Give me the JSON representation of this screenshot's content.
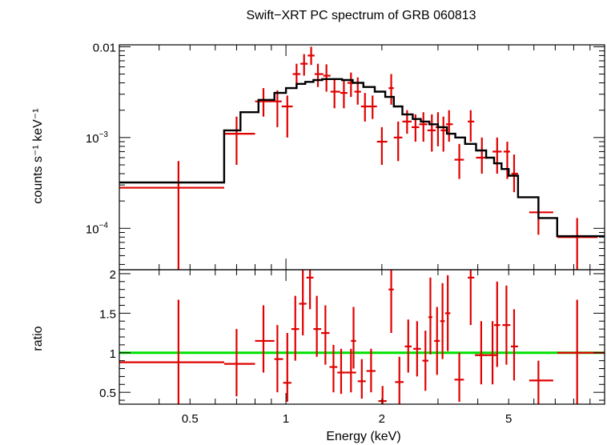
{
  "chart_data": {
    "type": "scatter",
    "title": "Swift−XRT PC spectrum of GRB 060813",
    "xlabel": "Energy (keV)",
    "xscale": "log",
    "xlim": [
      0.3,
      10
    ],
    "x_ticks": [
      {
        "value": 0.5,
        "label": "0.5"
      },
      {
        "value": 1,
        "label": "1"
      },
      {
        "value": 2,
        "label": "2"
      },
      {
        "value": 5,
        "label": "5"
      }
    ],
    "panels": [
      {
        "name": "spectrum",
        "ylabel": "counts s⁻¹ keV⁻¹",
        "yscale": "log",
        "ylim": [
          3.5e-05,
          0.0105
        ],
        "y_ticks": [
          {
            "value": 0.01,
            "label": "0.01",
            "base": "",
            "exp": ""
          },
          {
            "value": 0.001,
            "label": "",
            "base": "10",
            "exp": "−3"
          },
          {
            "value": 0.0001,
            "label": "",
            "base": "10",
            "exp": "−4"
          }
        ],
        "model_step": {
          "name": "model",
          "color": "#000000",
          "edges": [
            0.3,
            0.64,
            0.72,
            0.82,
            0.92,
            1.0,
            1.08,
            1.15,
            1.22,
            1.3,
            1.38,
            1.5,
            1.62,
            1.75,
            1.9,
            2.05,
            2.18,
            2.32,
            2.5,
            2.65,
            2.82,
            3.0,
            3.2,
            3.4,
            3.65,
            3.95,
            4.25,
            4.5,
            4.75,
            5.0,
            5.35,
            6.2,
            7.1,
            10.0
          ],
          "values": [
            0.00032,
            0.0012,
            0.0019,
            0.0026,
            0.0031,
            0.0035,
            0.0039,
            0.0041,
            0.0043,
            0.0044,
            0.0044,
            0.0043,
            0.004,
            0.0036,
            0.0032,
            0.0028,
            0.0022,
            0.0018,
            0.0016,
            0.0015,
            0.0014,
            0.0013,
            0.0011,
            0.001,
            0.00085,
            0.00072,
            0.0006,
            0.00052,
            0.00045,
            0.00038,
            0.00022,
            0.00013,
            8.2e-05
          ]
        },
        "series": [
          {
            "name": "data",
            "color": "#e00000",
            "points": [
              {
                "x": 0.46,
                "xlo": 0.3,
                "xhi": 0.64,
                "y": 0.00028,
                "ylo": 3.5e-05,
                "yhi": 0.00055
              },
              {
                "x": 0.7,
                "xlo": 0.64,
                "xhi": 0.8,
                "y": 0.0011,
                "ylo": 0.0005,
                "yhi": 0.0017
              },
              {
                "x": 0.85,
                "xlo": 0.8,
                "xhi": 0.92,
                "y": 0.0025,
                "ylo": 0.0017,
                "yhi": 0.0035
              },
              {
                "x": 0.94,
                "xlo": 0.92,
                "xhi": 0.97,
                "y": 0.0025,
                "ylo": 0.0013,
                "yhi": 0.0033
              },
              {
                "x": 1.01,
                "xlo": 0.97,
                "xhi": 1.05,
                "y": 0.0022,
                "ylo": 0.001,
                "yhi": 0.0029
              },
              {
                "x": 1.08,
                "xlo": 1.05,
                "xhi": 1.11,
                "y": 0.005,
                "ylo": 0.0036,
                "yhi": 0.0065
              },
              {
                "x": 1.14,
                "xlo": 1.11,
                "xhi": 1.17,
                "y": 0.0065,
                "ylo": 0.0048,
                "yhi": 0.0083
              },
              {
                "x": 1.2,
                "xlo": 1.17,
                "xhi": 1.23,
                "y": 0.008,
                "ylo": 0.0063,
                "yhi": 0.01
              },
              {
                "x": 1.26,
                "xlo": 1.23,
                "xhi": 1.31,
                "y": 0.005,
                "ylo": 0.0036,
                "yhi": 0.0065
              },
              {
                "x": 1.34,
                "xlo": 1.31,
                "xhi": 1.38,
                "y": 0.0048,
                "ylo": 0.0032,
                "yhi": 0.0064
              },
              {
                "x": 1.42,
                "xlo": 1.38,
                "xhi": 1.48,
                "y": 0.0032,
                "ylo": 0.0021,
                "yhi": 0.0043
              },
              {
                "x": 1.52,
                "xlo": 1.48,
                "xhi": 1.56,
                "y": 0.0031,
                "ylo": 0.0021,
                "yhi": 0.0043
              },
              {
                "x": 1.6,
                "xlo": 1.56,
                "xhi": 1.64,
                "y": 0.004,
                "ylo": 0.0028,
                "yhi": 0.0052
              },
              {
                "x": 1.68,
                "xlo": 1.64,
                "xhi": 1.72,
                "y": 0.0032,
                "ylo": 0.0023,
                "yhi": 0.0046
              },
              {
                "x": 1.77,
                "xlo": 1.72,
                "xhi": 1.82,
                "y": 0.0022,
                "ylo": 0.0015,
                "yhi": 0.0031
              },
              {
                "x": 1.87,
                "xlo": 1.82,
                "xhi": 1.93,
                "y": 0.0022,
                "ylo": 0.0016,
                "yhi": 0.0029
              },
              {
                "x": 2.0,
                "xlo": 1.93,
                "xhi": 2.08,
                "y": 0.0009,
                "ylo": 0.0005,
                "yhi": 0.0013
              },
              {
                "x": 2.14,
                "xlo": 2.1,
                "xhi": 2.18,
                "y": 0.0035,
                "ylo": 0.0023,
                "yhi": 0.005
              },
              {
                "x": 2.25,
                "xlo": 2.18,
                "xhi": 2.32,
                "y": 0.001,
                "ylo": 0.00055,
                "yhi": 0.0015
              },
              {
                "x": 2.4,
                "xlo": 2.32,
                "xhi": 2.48,
                "y": 0.0015,
                "ylo": 0.0011,
                "yhi": 0.002
              },
              {
                "x": 2.55,
                "xlo": 2.48,
                "xhi": 2.62,
                "y": 0.0013,
                "ylo": 0.0009,
                "yhi": 0.0018
              },
              {
                "x": 2.7,
                "xlo": 2.62,
                "xhi": 2.78,
                "y": 0.0014,
                "ylo": 0.0009,
                "yhi": 0.0019
              },
              {
                "x": 2.87,
                "xlo": 2.78,
                "xhi": 2.95,
                "y": 0.0012,
                "ylo": 0.0007,
                "yhi": 0.0018
              },
              {
                "x": 3.0,
                "xlo": 2.95,
                "xhi": 3.06,
                "y": 0.0013,
                "ylo": 0.0008,
                "yhi": 0.0019
              },
              {
                "x": 3.12,
                "xlo": 3.06,
                "xhi": 3.18,
                "y": 0.0012,
                "ylo": 0.0007,
                "yhi": 0.0017
              },
              {
                "x": 3.25,
                "xlo": 3.18,
                "xhi": 3.34,
                "y": 0.0014,
                "ylo": 0.0009,
                "yhi": 0.002
              },
              {
                "x": 3.5,
                "xlo": 3.38,
                "xhi": 3.62,
                "y": 0.00057,
                "ylo": 0.00035,
                "yhi": 0.00085
              },
              {
                "x": 3.8,
                "xlo": 3.72,
                "xhi": 3.9,
                "y": 0.0015,
                "ylo": 0.0009,
                "yhi": 0.002
              },
              {
                "x": 4.12,
                "xlo": 3.95,
                "xhi": 4.3,
                "y": 0.0006,
                "ylo": 0.0004,
                "yhi": 0.001
              },
              {
                "x": 4.6,
                "xlo": 4.45,
                "xhi": 4.75,
                "y": 0.0007,
                "ylo": 0.0004,
                "yhi": 0.001
              },
              {
                "x": 4.95,
                "xlo": 4.82,
                "xhi": 5.05,
                "y": 0.0007,
                "ylo": 0.00035,
                "yhi": 0.0009
              },
              {
                "x": 5.2,
                "xlo": 5.1,
                "xhi": 5.35,
                "y": 0.0004,
                "ylo": 0.00025,
                "yhi": 0.00065
              },
              {
                "x": 6.2,
                "xlo": 5.8,
                "xhi": 6.9,
                "y": 0.00015,
                "ylo": 8.5e-05,
                "yhi": 0.00022
              },
              {
                "x": 8.2,
                "xlo": 7.1,
                "xhi": 9.5,
                "y": 8e-05,
                "ylo": 3.5e-05,
                "yhi": 0.00013
              }
            ]
          }
        ]
      },
      {
        "name": "ratio",
        "ylabel": "ratio",
        "yscale": "linear",
        "ylim": [
          0.35,
          2.05
        ],
        "y_ticks": [
          {
            "value": 2,
            "label": "2"
          },
          {
            "value": 1.5,
            "label": "1.5"
          },
          {
            "value": 1,
            "label": "1"
          },
          {
            "value": 0.5,
            "label": "0.5"
          }
        ],
        "reference_line": {
          "name": "unity",
          "value": 1,
          "color": "#00e000"
        },
        "series": [
          {
            "name": "data/model",
            "color": "#e00000",
            "points": [
              {
                "x": 0.46,
                "xlo": 0.3,
                "xhi": 0.64,
                "y": 0.88,
                "ylo": 0.35,
                "yhi": 1.67
              },
              {
                "x": 0.7,
                "xlo": 0.64,
                "xhi": 0.8,
                "y": 0.86,
                "ylo": 0.45,
                "yhi": 1.3
              },
              {
                "x": 0.85,
                "xlo": 0.8,
                "xhi": 0.92,
                "y": 1.15,
                "ylo": 0.75,
                "yhi": 1.6
              },
              {
                "x": 0.94,
                "xlo": 0.92,
                "xhi": 0.98,
                "y": 0.92,
                "ylo": 0.5,
                "yhi": 1.35
              },
              {
                "x": 1.01,
                "xlo": 0.98,
                "xhi": 1.04,
                "y": 0.62,
                "ylo": 0.38,
                "yhi": 1.25
              },
              {
                "x": 1.07,
                "xlo": 1.04,
                "xhi": 1.1,
                "y": 1.3,
                "ylo": 0.9,
                "yhi": 1.72
              },
              {
                "x": 1.13,
                "xlo": 1.1,
                "xhi": 1.16,
                "y": 1.62,
                "ylo": 1.22,
                "yhi": 2.05
              },
              {
                "x": 1.19,
                "xlo": 1.16,
                "xhi": 1.22,
                "y": 1.95,
                "ylo": 1.55,
                "yhi": 2.05
              },
              {
                "x": 1.25,
                "xlo": 1.22,
                "xhi": 1.29,
                "y": 1.3,
                "ylo": 0.95,
                "yhi": 1.72
              },
              {
                "x": 1.33,
                "xlo": 1.29,
                "xhi": 1.37,
                "y": 1.25,
                "ylo": 0.85,
                "yhi": 1.6
              },
              {
                "x": 1.41,
                "xlo": 1.37,
                "xhi": 1.45,
                "y": 0.82,
                "ylo": 0.5,
                "yhi": 1.1
              },
              {
                "x": 1.49,
                "xlo": 1.45,
                "xhi": 1.54,
                "y": 0.75,
                "ylo": 0.48,
                "yhi": 1.05
              },
              {
                "x": 1.6,
                "xlo": 1.54,
                "xhi": 1.66,
                "y": 0.75,
                "ylo": 0.5,
                "yhi": 1.05
              },
              {
                "x": 1.63,
                "xlo": 1.6,
                "xhi": 1.66,
                "y": 1.15,
                "ylo": 0.8,
                "yhi": 1.58
              },
              {
                "x": 1.73,
                "xlo": 1.68,
                "xhi": 1.78,
                "y": 0.64,
                "ylo": 0.42,
                "yhi": 0.92
              },
              {
                "x": 1.85,
                "xlo": 1.79,
                "xhi": 1.91,
                "y": 0.77,
                "ylo": 0.5,
                "yhi": 1.05
              },
              {
                "x": 2.01,
                "xlo": 1.95,
                "xhi": 2.07,
                "y": 0.39,
                "ylo": 0.35,
                "yhi": 0.58
              },
              {
                "x": 2.14,
                "xlo": 2.1,
                "xhi": 2.18,
                "y": 1.8,
                "ylo": 1.25,
                "yhi": 2.05
              },
              {
                "x": 2.27,
                "xlo": 2.2,
                "xhi": 2.34,
                "y": 0.63,
                "ylo": 0.35,
                "yhi": 0.95
              },
              {
                "x": 2.42,
                "xlo": 2.36,
                "xhi": 2.48,
                "y": 1.08,
                "ylo": 0.75,
                "yhi": 1.42
              },
              {
                "x": 2.58,
                "xlo": 2.51,
                "xhi": 2.65,
                "y": 1.05,
                "ylo": 0.7,
                "yhi": 1.4
              },
              {
                "x": 2.74,
                "xlo": 2.68,
                "xhi": 2.8,
                "y": 0.9,
                "ylo": 0.52,
                "yhi": 1.28
              },
              {
                "x": 2.84,
                "xlo": 2.8,
                "xhi": 2.88,
                "y": 1.45,
                "ylo": 0.98,
                "yhi": 1.95
              },
              {
                "x": 2.98,
                "xlo": 2.92,
                "xhi": 3.04,
                "y": 1.15,
                "ylo": 0.72,
                "yhi": 1.58
              },
              {
                "x": 3.1,
                "xlo": 3.05,
                "xhi": 3.15,
                "y": 1.4,
                "ylo": 0.92,
                "yhi": 1.88
              },
              {
                "x": 3.22,
                "xlo": 3.16,
                "xhi": 3.28,
                "y": 1.5,
                "ylo": 1.02,
                "yhi": 1.98
              },
              {
                "x": 3.5,
                "xlo": 3.38,
                "xhi": 3.62,
                "y": 0.66,
                "ylo": 0.38,
                "yhi": 1.0
              },
              {
                "x": 3.8,
                "xlo": 3.72,
                "xhi": 3.9,
                "y": 1.95,
                "ylo": 1.35,
                "yhi": 2.05
              },
              {
                "x": 4.1,
                "xlo": 3.92,
                "xhi": 4.3,
                "y": 0.97,
                "ylo": 0.6,
                "yhi": 1.4
              },
              {
                "x": 4.45,
                "xlo": 4.3,
                "xhi": 4.62,
                "y": 0.97,
                "ylo": 0.6,
                "yhi": 1.4
              },
              {
                "x": 4.6,
                "xlo": 4.5,
                "xhi": 4.7,
                "y": 1.35,
                "ylo": 0.82,
                "yhi": 1.9
              },
              {
                "x": 4.92,
                "xlo": 4.78,
                "xhi": 5.06,
                "y": 1.35,
                "ylo": 0.85,
                "yhi": 1.85
              },
              {
                "x": 5.2,
                "xlo": 5.08,
                "xhi": 5.35,
                "y": 1.08,
                "ylo": 0.65,
                "yhi": 1.55
              },
              {
                "x": 6.2,
                "xlo": 5.8,
                "xhi": 6.9,
                "y": 0.65,
                "ylo": 0.35,
                "yhi": 0.9
              },
              {
                "x": 8.2,
                "xlo": 7.1,
                "xhi": 10.0,
                "y": 1.0,
                "ylo": 0.35,
                "yhi": 1.67
              }
            ]
          }
        ]
      }
    ]
  }
}
